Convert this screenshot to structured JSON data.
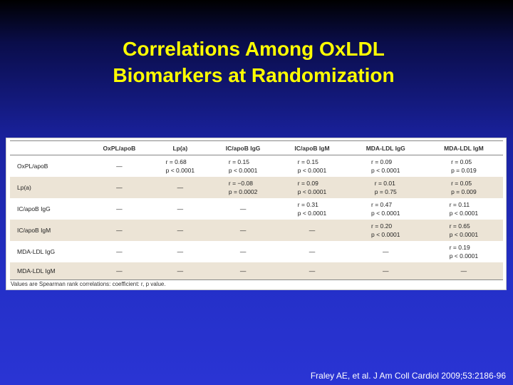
{
  "title": {
    "line1": "Correlations Among OxLDL",
    "line2": "Biomarkers at Randomization"
  },
  "table": {
    "columns": [
      "",
      "OxPL/apoB",
      "Lp(a)",
      "IC/apoB IgG",
      "IC/apoB IgM",
      "MDA-LDL IgG",
      "MDA-LDL IgM"
    ],
    "rows": [
      {
        "label": "OxPL/apoB",
        "shaded": false,
        "cells": [
          {
            "r": "—",
            "p": ""
          },
          {
            "r": "r = 0.68",
            "p": "p < 0.0001"
          },
          {
            "r": "r = 0.15",
            "p": "p < 0.0001"
          },
          {
            "r": "r = 0.15",
            "p": "p < 0.0001"
          },
          {
            "r": "r = 0.09",
            "p": "p < 0.0001"
          },
          {
            "r": "r = 0.05",
            "p": "p = 0.019"
          }
        ]
      },
      {
        "label": "Lp(a)",
        "shaded": true,
        "cells": [
          {
            "r": "—",
            "p": ""
          },
          {
            "r": "—",
            "p": ""
          },
          {
            "r": "r = −0.08",
            "p": "p = 0.0002"
          },
          {
            "r": "r = 0.09",
            "p": "p < 0.0001"
          },
          {
            "r": "r = 0.01",
            "p": "p = 0.75"
          },
          {
            "r": "r = 0.05",
            "p": "p = 0.009"
          }
        ]
      },
      {
        "label": "IC/apoB IgG",
        "shaded": false,
        "cells": [
          {
            "r": "—",
            "p": ""
          },
          {
            "r": "—",
            "p": ""
          },
          {
            "r": "—",
            "p": ""
          },
          {
            "r": "r = 0.31",
            "p": "p < 0.0001"
          },
          {
            "r": "r = 0.47",
            "p": "p < 0.0001"
          },
          {
            "r": "r = 0.11",
            "p": "p < 0.0001"
          }
        ]
      },
      {
        "label": "IC/apoB IgM",
        "shaded": true,
        "cells": [
          {
            "r": "—",
            "p": ""
          },
          {
            "r": "—",
            "p": ""
          },
          {
            "r": "—",
            "p": ""
          },
          {
            "r": "—",
            "p": ""
          },
          {
            "r": "r = 0.20",
            "p": "p < 0.0001"
          },
          {
            "r": "r = 0.65",
            "p": "p < 0.0001"
          }
        ]
      },
      {
        "label": "MDA-LDL IgG",
        "shaded": false,
        "cells": [
          {
            "r": "—",
            "p": ""
          },
          {
            "r": "—",
            "p": ""
          },
          {
            "r": "—",
            "p": ""
          },
          {
            "r": "—",
            "p": ""
          },
          {
            "r": "—",
            "p": ""
          },
          {
            "r": "r = 0.19",
            "p": "p < 0.0001"
          }
        ]
      },
      {
        "label": "MDA-LDL IgM",
        "shaded": true,
        "cells": [
          {
            "r": "—",
            "p": ""
          },
          {
            "r": "—",
            "p": ""
          },
          {
            "r": "—",
            "p": ""
          },
          {
            "r": "—",
            "p": ""
          },
          {
            "r": "—",
            "p": ""
          },
          {
            "r": "—",
            "p": ""
          }
        ]
      }
    ],
    "footnote": "Values are Spearman rank correlations: coefficient: r, p value."
  },
  "citation": "Fraley AE, et al. J Am Coll Cardiol 2009;53:2186-96",
  "colors": {
    "title": "#ffff00",
    "background_top": "#000000",
    "background_bottom": "#2a34d4",
    "row_shade": "#ece4d6"
  }
}
